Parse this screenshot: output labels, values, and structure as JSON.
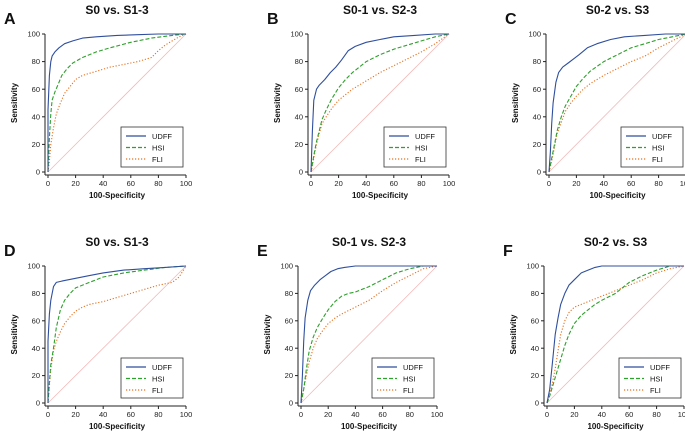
{
  "figure": {
    "curve_colors": {
      "UDFF": "#2f4f9e",
      "HSI": "#2ea02c",
      "FLI": "#e8701e",
      "diagonal": "#f3b9b9"
    }
  },
  "chart_data": [
    {
      "panel": "A",
      "title": "S0 vs. S1-3",
      "type": "line",
      "xlabel": "100-Specificity",
      "ylabel": "Sensitivity",
      "xlim": [
        0,
        100
      ],
      "ylim": [
        0,
        100
      ],
      "xticks": [
        "0",
        "20",
        "40",
        "60",
        "80",
        "100"
      ],
      "yticks": [
        "0",
        "20",
        "40",
        "60",
        "80",
        "100"
      ],
      "legend_position": "bottom-right",
      "reference_line": "diagonal",
      "series": [
        {
          "name": "UDFF",
          "style": "solid",
          "x": [
            0,
            0,
            1,
            2,
            3,
            5,
            8,
            12,
            18,
            25,
            35,
            50,
            65,
            80,
            100
          ],
          "y": [
            0,
            45,
            70,
            80,
            84,
            87,
            90,
            93,
            95,
            97,
            98,
            99,
            99.5,
            100,
            100
          ]
        },
        {
          "name": "HSI",
          "style": "dashed",
          "x": [
            0,
            1,
            2,
            3,
            5,
            8,
            10,
            14,
            18,
            25,
            35,
            45,
            60,
            75,
            90,
            100
          ],
          "y": [
            0,
            25,
            42,
            52,
            58,
            65,
            70,
            75,
            79,
            83,
            87,
            90,
            94,
            97,
            99,
            100
          ]
        },
        {
          "name": "FLI",
          "style": "dotted",
          "x": [
            0,
            1,
            2,
            4,
            6,
            9,
            12,
            16,
            20,
            25,
            35,
            45,
            55,
            65,
            75,
            80,
            85,
            90,
            95,
            100
          ],
          "y": [
            0,
            8,
            20,
            32,
            42,
            50,
            57,
            62,
            67,
            70,
            73,
            76,
            78,
            80,
            83,
            88,
            92,
            95,
            98,
            100
          ]
        }
      ]
    },
    {
      "panel": "B",
      "title": "S0-1 vs. S2-3",
      "type": "line",
      "xlabel": "100-Specificity",
      "ylabel": "Sensitivity",
      "xlim": [
        0,
        100
      ],
      "ylim": [
        0,
        100
      ],
      "xticks": [
        "0",
        "20",
        "40",
        "60",
        "80",
        "100"
      ],
      "yticks": [
        "0",
        "20",
        "40",
        "60",
        "80",
        "100"
      ],
      "legend_position": "bottom-right",
      "reference_line": "diagonal",
      "series": [
        {
          "name": "UDFF",
          "style": "solid",
          "x": [
            0,
            1,
            2,
            4,
            6,
            10,
            14,
            18,
            22,
            27,
            32,
            40,
            50,
            60,
            75,
            90,
            100
          ],
          "y": [
            0,
            30,
            52,
            60,
            63,
            67,
            72,
            76,
            81,
            88,
            91,
            94,
            96,
            98,
            99,
            100,
            100
          ]
        },
        {
          "name": "HSI",
          "style": "dashed",
          "x": [
            0,
            2,
            4,
            6,
            8,
            11,
            15,
            20,
            25,
            30,
            40,
            50,
            60,
            70,
            80,
            90,
            100
          ],
          "y": [
            0,
            12,
            22,
            30,
            38,
            45,
            53,
            61,
            67,
            72,
            80,
            85,
            89,
            92,
            95,
            98,
            100
          ]
        },
        {
          "name": "FLI",
          "style": "dotted",
          "x": [
            0,
            2,
            4,
            6,
            8,
            11,
            15,
            20,
            25,
            30,
            40,
            50,
            60,
            70,
            80,
            90,
            100
          ],
          "y": [
            0,
            10,
            20,
            28,
            35,
            40,
            46,
            52,
            56,
            60,
            66,
            72,
            77,
            82,
            87,
            93,
            100
          ]
        }
      ]
    },
    {
      "panel": "C",
      "title": "S0-2 vs. S3",
      "type": "line",
      "xlabel": "100-Specificity",
      "ylabel": "Sensitivity",
      "xlim": [
        0,
        100
      ],
      "ylim": [
        0,
        100
      ],
      "xticks": [
        "0",
        "20",
        "40",
        "60",
        "80",
        "100"
      ],
      "yticks": [
        "0",
        "20",
        "40",
        "60",
        "80",
        "100"
      ],
      "legend_position": "bottom-right",
      "reference_line": "diagonal",
      "series": [
        {
          "name": "UDFF",
          "style": "solid",
          "x": [
            0,
            1,
            2,
            3,
            5,
            7,
            10,
            14,
            18,
            22,
            28,
            35,
            45,
            55,
            70,
            85,
            100
          ],
          "y": [
            0,
            15,
            35,
            50,
            65,
            72,
            76,
            79,
            82,
            85,
            90,
            93,
            96,
            98,
            99,
            100,
            100
          ]
        },
        {
          "name": "HSI",
          "style": "dashed",
          "x": [
            0,
            2,
            4,
            6,
            9,
            12,
            16,
            20,
            25,
            30,
            40,
            50,
            60,
            70,
            80,
            90,
            100
          ],
          "y": [
            0,
            10,
            20,
            30,
            40,
            48,
            55,
            62,
            68,
            73,
            80,
            85,
            90,
            93,
            96,
            98,
            100
          ]
        },
        {
          "name": "FLI",
          "style": "dotted",
          "x": [
            0,
            2,
            4,
            6,
            9,
            12,
            16,
            20,
            25,
            30,
            40,
            50,
            60,
            70,
            80,
            90,
            100
          ],
          "y": [
            0,
            8,
            18,
            28,
            36,
            44,
            50,
            55,
            60,
            64,
            70,
            75,
            80,
            84,
            90,
            95,
            100
          ]
        }
      ]
    },
    {
      "panel": "D",
      "title": "S0 vs. S1-3",
      "type": "line",
      "xlabel": "100-Specificity",
      "ylabel": "Sensitivity",
      "xlim": [
        0,
        100
      ],
      "ylim": [
        0,
        100
      ],
      "xticks": [
        "0",
        "20",
        "40",
        "60",
        "80",
        "100"
      ],
      "yticks": [
        "0",
        "20",
        "40",
        "60",
        "80",
        "100"
      ],
      "legend_position": "bottom-right",
      "reference_line": "diagonal",
      "series": [
        {
          "name": "UDFF",
          "style": "solid",
          "x": [
            0,
            0,
            1,
            2,
            4,
            6,
            10,
            15,
            20,
            30,
            40,
            55,
            70,
            85,
            100
          ],
          "y": [
            0,
            45,
            65,
            75,
            85,
            88,
            89,
            90,
            91,
            93,
            95,
            97,
            98,
            99,
            100
          ]
        },
        {
          "name": "HSI",
          "style": "dashed",
          "x": [
            0,
            1,
            2,
            4,
            6,
            9,
            12,
            16,
            20,
            30,
            40,
            55,
            70,
            85,
            100
          ],
          "y": [
            0,
            15,
            28,
            40,
            55,
            68,
            75,
            80,
            84,
            88,
            92,
            95,
            97,
            99,
            100
          ]
        },
        {
          "name": "FLI",
          "style": "dotted",
          "x": [
            0,
            2,
            4,
            6,
            9,
            12,
            16,
            20,
            25,
            30,
            40,
            50,
            60,
            70,
            80,
            90,
            95,
            100
          ],
          "y": [
            0,
            25,
            38,
            45,
            52,
            58,
            63,
            67,
            70,
            72,
            74,
            77,
            80,
            83,
            86,
            88,
            92,
            100
          ]
        }
      ]
    },
    {
      "panel": "E",
      "title": "S0-1 vs. S2-3",
      "type": "line",
      "xlabel": "100-Specificity",
      "ylabel": "Sensitivity",
      "xlim": [
        0,
        100
      ],
      "ylim": [
        0,
        100
      ],
      "xticks": [
        "0",
        "20",
        "40",
        "60",
        "80",
        "100"
      ],
      "yticks": [
        "0",
        "20",
        "40",
        "60",
        "80",
        "100"
      ],
      "legend_position": "bottom-right",
      "reference_line": "diagonal",
      "series": [
        {
          "name": "UDFF",
          "style": "solid",
          "x": [
            0,
            1,
            2,
            3,
            5,
            7,
            10,
            14,
            18,
            22,
            27,
            32,
            40,
            50,
            100
          ],
          "y": [
            0,
            20,
            45,
            62,
            75,
            82,
            86,
            90,
            93,
            96,
            98,
            99,
            100,
            100,
            100
          ]
        },
        {
          "name": "HSI",
          "style": "dashed",
          "x": [
            0,
            2,
            4,
            6,
            9,
            12,
            16,
            20,
            25,
            30,
            35,
            40,
            50,
            60,
            70,
            80,
            90,
            100
          ],
          "y": [
            0,
            10,
            25,
            38,
            48,
            55,
            62,
            68,
            74,
            78,
            80,
            81,
            85,
            90,
            95,
            98,
            100,
            100
          ]
        },
        {
          "name": "FLI",
          "style": "dotted",
          "x": [
            0,
            2,
            4,
            6,
            9,
            12,
            16,
            20,
            25,
            30,
            40,
            50,
            60,
            70,
            80,
            90,
            100
          ],
          "y": [
            0,
            10,
            20,
            30,
            40,
            47,
            53,
            58,
            62,
            65,
            70,
            75,
            82,
            88,
            93,
            98,
            100
          ]
        }
      ]
    },
    {
      "panel": "F",
      "title": "S0-2 vs. S3",
      "type": "line",
      "xlabel": "100-Specificity",
      "ylabel": "Sensitivity",
      "xlim": [
        0,
        100
      ],
      "ylim": [
        0,
        100
      ],
      "xticks": [
        "0",
        "20",
        "40",
        "60",
        "80",
        "100"
      ],
      "yticks": [
        "0",
        "20",
        "40",
        "60",
        "80",
        "100"
      ],
      "legend_position": "bottom-right",
      "reference_line": "diagonal",
      "series": [
        {
          "name": "UDFF",
          "style": "solid",
          "x": [
            0,
            2,
            4,
            6,
            8,
            10,
            13,
            16,
            20,
            25,
            30,
            35,
            40,
            50,
            100
          ],
          "y": [
            0,
            10,
            30,
            50,
            62,
            72,
            80,
            86,
            90,
            95,
            97,
            99,
            100,
            100,
            100
          ]
        },
        {
          "name": "HSI",
          "style": "dashed",
          "x": [
            0,
            2,
            4,
            7,
            10,
            13,
            16,
            20,
            25,
            30,
            35,
            40,
            50,
            60,
            70,
            80,
            90,
            100
          ],
          "y": [
            0,
            5,
            12,
            22,
            32,
            42,
            50,
            58,
            64,
            68,
            72,
            75,
            80,
            88,
            93,
            97,
            100,
            100
          ]
        },
        {
          "name": "FLI",
          "style": "dotted",
          "x": [
            0,
            2,
            4,
            6,
            8,
            10,
            13,
            16,
            20,
            25,
            30,
            35,
            40,
            50,
            60,
            70,
            80,
            90,
            100
          ],
          "y": [
            0,
            6,
            15,
            25,
            38,
            50,
            60,
            66,
            70,
            72,
            74,
            76,
            78,
            82,
            86,
            90,
            95,
            98,
            100
          ]
        }
      ]
    }
  ]
}
